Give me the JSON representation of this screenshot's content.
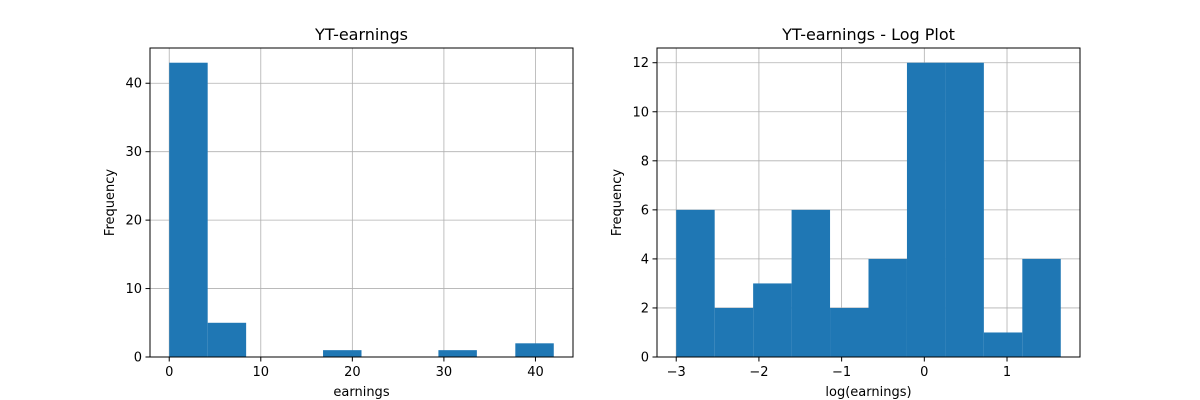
{
  "chart_data": [
    {
      "type": "bar",
      "title": "YT-earnings",
      "xlabel": "earnings",
      "ylabel": "Frequency",
      "bin_edges": [
        0.0,
        4.2,
        8.4,
        12.6,
        16.8,
        21.0,
        25.2,
        29.4,
        33.6,
        37.8,
        42.0
      ],
      "values": [
        43,
        5,
        0,
        0,
        1,
        0,
        0,
        1,
        0,
        2
      ],
      "xlim": [
        -2.1,
        44.1
      ],
      "ylim": [
        0,
        45.15
      ],
      "xticks": [
        0,
        10,
        20,
        30,
        40
      ],
      "xticklabels": [
        "0",
        "10",
        "20",
        "30",
        "40"
      ],
      "yticks": [
        0,
        10,
        20,
        30,
        40
      ],
      "yticklabels": [
        "0",
        "10",
        "20",
        "30",
        "40"
      ],
      "grid": true,
      "color": "#1f77b4"
    },
    {
      "type": "bar",
      "title": "YT-earnings - Log Plot",
      "xlabel": "log(earnings)",
      "ylabel": "Frequency",
      "bin_edges": [
        -3.0,
        -2.535,
        -2.07,
        -1.605,
        -1.14,
        -0.675,
        -0.21,
        0.255,
        0.72,
        1.185,
        1.65
      ],
      "values": [
        6,
        2,
        3,
        6,
        2,
        4,
        12,
        12,
        1,
        4
      ],
      "xlim": [
        -3.2325,
        1.8825
      ],
      "ylim": [
        0,
        12.6
      ],
      "xticks": [
        -3,
        -2,
        -1,
        0,
        1
      ],
      "xticklabels": [
        "−3",
        "−2",
        "−1",
        "0",
        "1"
      ],
      "yticks": [
        0,
        2,
        4,
        6,
        8,
        10,
        12
      ],
      "yticklabels": [
        "0",
        "2",
        "4",
        "6",
        "8",
        "10",
        "12"
      ],
      "grid": true,
      "color": "#1f77b4"
    }
  ]
}
